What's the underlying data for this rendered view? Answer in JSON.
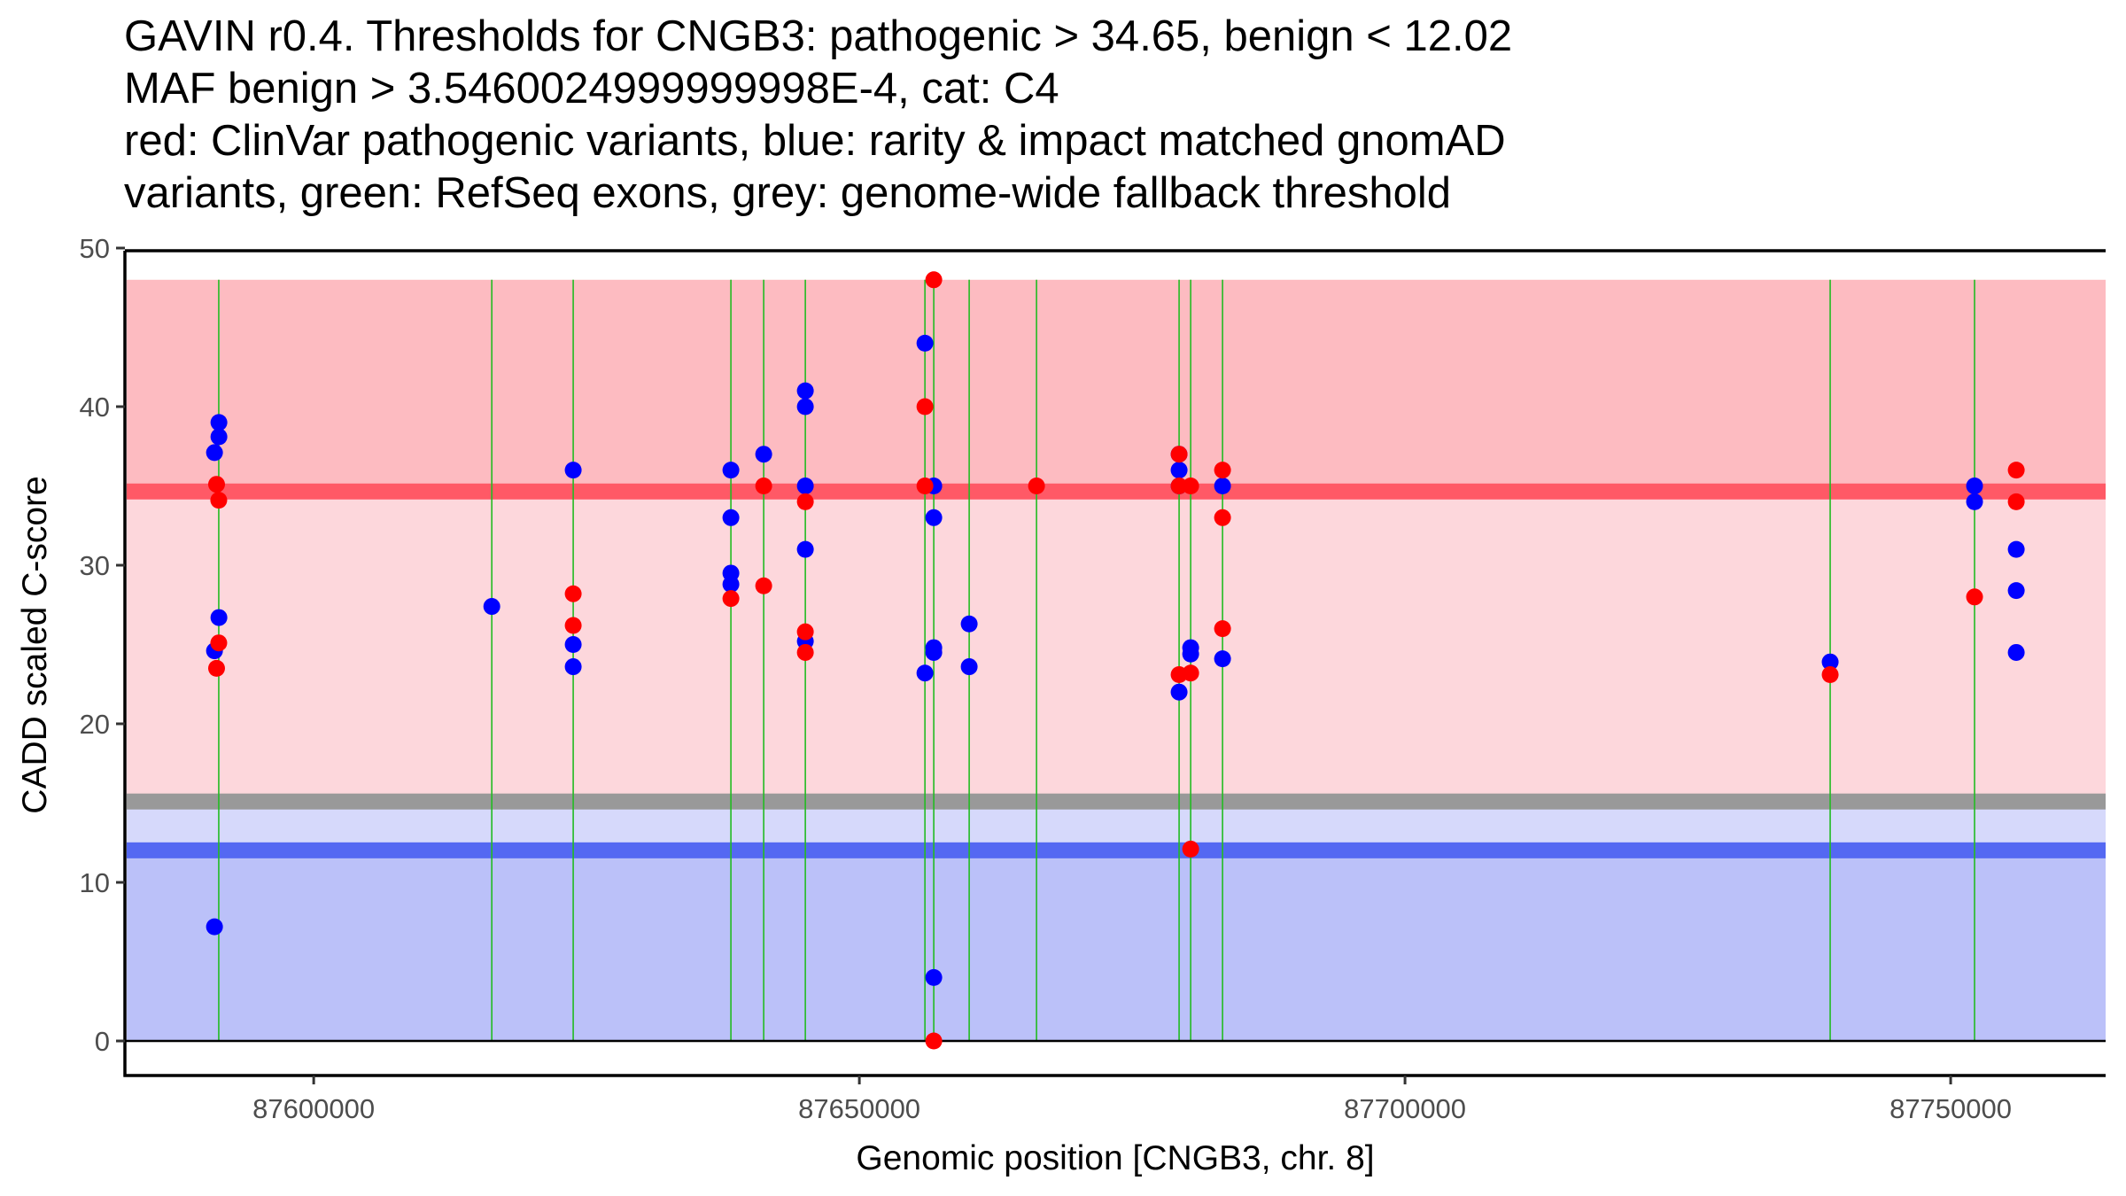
{
  "title_lines": [
    "GAVIN r0.4. Thresholds for CNGB3: pathogenic > 34.65, benign < 12.02",
    "MAF benign > 3.5460024999999998E-4, cat: C4",
    "red: ClinVar pathogenic variants, blue: rarity & impact matched gnomAD",
    "variants, green: RefSeq exons, grey: genome-wide fallback threshold"
  ],
  "chart_data": {
    "type": "scatter",
    "title": "GAVIN r0.4. Thresholds for CNGB3: pathogenic > 34.65, benign < 12.02 / MAF benign > 3.5460024999999998E-4, cat: C4",
    "xlabel": "Genomic position [CNGB3, chr. 8]",
    "ylabel": "CADD scaled C-score",
    "xlim": [
      87582700,
      87764200
    ],
    "ylim": [
      -2.2,
      50
    ],
    "x_ticks": [
      87600000,
      87650000,
      87700000,
      87750000
    ],
    "x_tick_labels": [
      "87600000",
      "87650000",
      "87700000",
      "87750000"
    ],
    "y_ticks": [
      0,
      10,
      20,
      30,
      40,
      50
    ],
    "y_tick_labels": [
      "0",
      "10",
      "20",
      "30",
      "40",
      "50"
    ],
    "grid": false,
    "legend": "none (described in title)",
    "thresholds": {
      "pathogenic": 34.65,
      "benign": 12.02,
      "genome_wide_fallback": 15.1
    },
    "bands": [
      {
        "name": "pathogenic-zone",
        "from": 34.65,
        "to": 48.0,
        "color": "#fdbbc1"
      },
      {
        "name": "upper-mid-zone",
        "from": 15.1,
        "to": 34.65,
        "color": "#fdd7dc"
      },
      {
        "name": "lower-mid-zone",
        "from": 12.02,
        "to": 15.1,
        "color": "#d6d9fb"
      },
      {
        "name": "benign-zone",
        "from": 0,
        "to": 12.02,
        "color": "#bbc1f9"
      }
    ],
    "threshold_lines": [
      {
        "name": "pathogenic-threshold",
        "value": 34.65,
        "color": "#ff5966"
      },
      {
        "name": "fallback-threshold",
        "value": 15.1,
        "color": "#999999"
      },
      {
        "name": "benign-threshold",
        "value": 12.02,
        "color": "#5468f2"
      }
    ],
    "zero_line": 0,
    "exons": [
      87591300,
      87616320,
      87623780,
      87638230,
      87641235,
      87645050,
      87656010,
      87656820,
      87660065,
      87666235,
      87679300,
      87680360,
      87683280,
      87738960,
      87752190
    ],
    "series": [
      {
        "name": "gnomAD rarity & impact matched variants",
        "color": "#0000ff",
        "points": [
          [
            87591315,
            39.0
          ],
          [
            87591315,
            38.1
          ],
          [
            87590910,
            37.1
          ],
          [
            87591315,
            26.7
          ],
          [
            87590910,
            24.6
          ],
          [
            87590910,
            7.2
          ],
          [
            87616320,
            27.4
          ],
          [
            87623780,
            36.0
          ],
          [
            87623780,
            25.0
          ],
          [
            87623780,
            23.6
          ],
          [
            87638230,
            36.0
          ],
          [
            87638230,
            33.0
          ],
          [
            87638230,
            29.5
          ],
          [
            87638230,
            28.8
          ],
          [
            87641235,
            37.0
          ],
          [
            87645050,
            41.0
          ],
          [
            87645050,
            40.0
          ],
          [
            87645050,
            35.0
          ],
          [
            87645050,
            31.0
          ],
          [
            87645050,
            25.2
          ],
          [
            87656010,
            44.0
          ],
          [
            87656010,
            23.2
          ],
          [
            87656820,
            35.0
          ],
          [
            87656820,
            33.0
          ],
          [
            87656820,
            24.8
          ],
          [
            87656820,
            24.5
          ],
          [
            87656820,
            4.0
          ],
          [
            87660065,
            26.3
          ],
          [
            87660065,
            23.6
          ],
          [
            87679300,
            37.0
          ],
          [
            87679300,
            36.0
          ],
          [
            87679300,
            35.0
          ],
          [
            87679300,
            22.0
          ],
          [
            87680360,
            24.8
          ],
          [
            87680360,
            24.4
          ],
          [
            87683280,
            35.0
          ],
          [
            87683280,
            24.1
          ],
          [
            87738960,
            23.9
          ],
          [
            87752190,
            35.0
          ],
          [
            87752190,
            34.0
          ],
          [
            87756010,
            31.0
          ],
          [
            87756010,
            28.4
          ],
          [
            87756010,
            24.5
          ]
        ]
      },
      {
        "name": "ClinVar pathogenic variants",
        "color": "#ff0000",
        "points": [
          [
            87591100,
            35.1
          ],
          [
            87591300,
            34.1
          ],
          [
            87591300,
            25.1
          ],
          [
            87591100,
            23.5
          ],
          [
            87623780,
            28.2
          ],
          [
            87623780,
            26.2
          ],
          [
            87638230,
            27.9
          ],
          [
            87641235,
            35.0
          ],
          [
            87641235,
            28.7
          ],
          [
            87645050,
            34.0
          ],
          [
            87645050,
            25.8
          ],
          [
            87645050,
            24.5
          ],
          [
            87656010,
            40.0
          ],
          [
            87656010,
            35.0
          ],
          [
            87656820,
            48.0
          ],
          [
            87656820,
            0.0
          ],
          [
            87666235,
            35.0
          ],
          [
            87679300,
            37.0
          ],
          [
            87679300,
            35.0
          ],
          [
            87679300,
            23.1
          ],
          [
            87680360,
            35.0
          ],
          [
            87680360,
            23.2
          ],
          [
            87680360,
            12.1
          ],
          [
            87683280,
            36.0
          ],
          [
            87683280,
            33.0
          ],
          [
            87683280,
            26.0
          ],
          [
            87738960,
            23.1
          ],
          [
            87752190,
            28.0
          ],
          [
            87756010,
            36.0
          ],
          [
            87756010,
            34.0
          ]
        ]
      }
    ],
    "exon_color": "#22bb22",
    "colors": {
      "pathogenic": "#ff0000",
      "population": "#0000ff",
      "exon": "#22bb22"
    }
  }
}
